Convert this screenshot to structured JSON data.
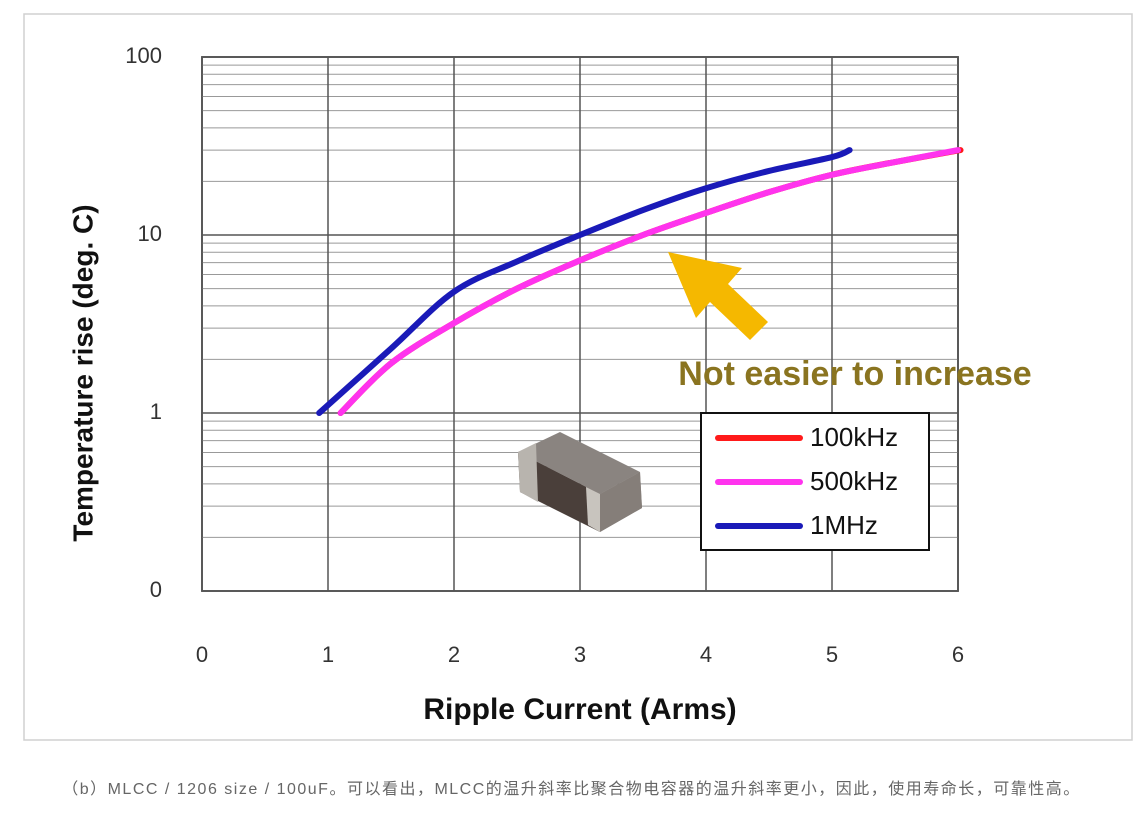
{
  "chart_data": {
    "type": "line",
    "ylabel": "Temperature rise (deg. C)",
    "xlabel": "Ripple Current (Arms)",
    "annotation": "Not easier to increase",
    "caption": "（b）MLCC / 1206 size / 100uF。可以看出，MLCC的温升斜率比聚合物电容器的温升斜率更小，因此，使用寿命长，可靠性高。",
    "xlim": [
      0,
      6
    ],
    "xticks": [
      0,
      1,
      2,
      3,
      4,
      5,
      6
    ],
    "ylim": [
      0.1,
      100
    ],
    "yticks": [
      {
        "value": 0.1,
        "label": "0"
      },
      1,
      10,
      100
    ],
    "log_y": true,
    "grid": true,
    "legend": "lower right",
    "series": [
      {
        "name": "100kHz",
        "color": "#ff1a1a",
        "x": [
          1.1,
          1.5,
          2,
          2.5,
          3,
          3.5,
          4,
          4.5,
          5,
          5.5,
          6.02
        ],
        "values": [
          1.0,
          1.9,
          3.2,
          5.0,
          7.2,
          10,
          13.3,
          17.4,
          21.8,
          25.7,
          30
        ]
      },
      {
        "name": "500kHz",
        "color": "#ff33ee",
        "x": [
          1.1,
          1.5,
          2,
          2.5,
          3,
          3.5,
          4,
          4.5,
          5,
          5.5,
          6
        ],
        "values": [
          1.0,
          1.9,
          3.2,
          5.0,
          7.2,
          10,
          13.3,
          17.4,
          21.8,
          25.7,
          30
        ]
      },
      {
        "name": "1MHz",
        "color": "#1a1ab8",
        "x": [
          0.93,
          1.5,
          2,
          2.5,
          3,
          3.5,
          4,
          4.5,
          5,
          5.14
        ],
        "values": [
          1.0,
          2.3,
          4.8,
          7.1,
          10,
          13.8,
          18.3,
          22.9,
          27.4,
          30
        ]
      }
    ]
  }
}
